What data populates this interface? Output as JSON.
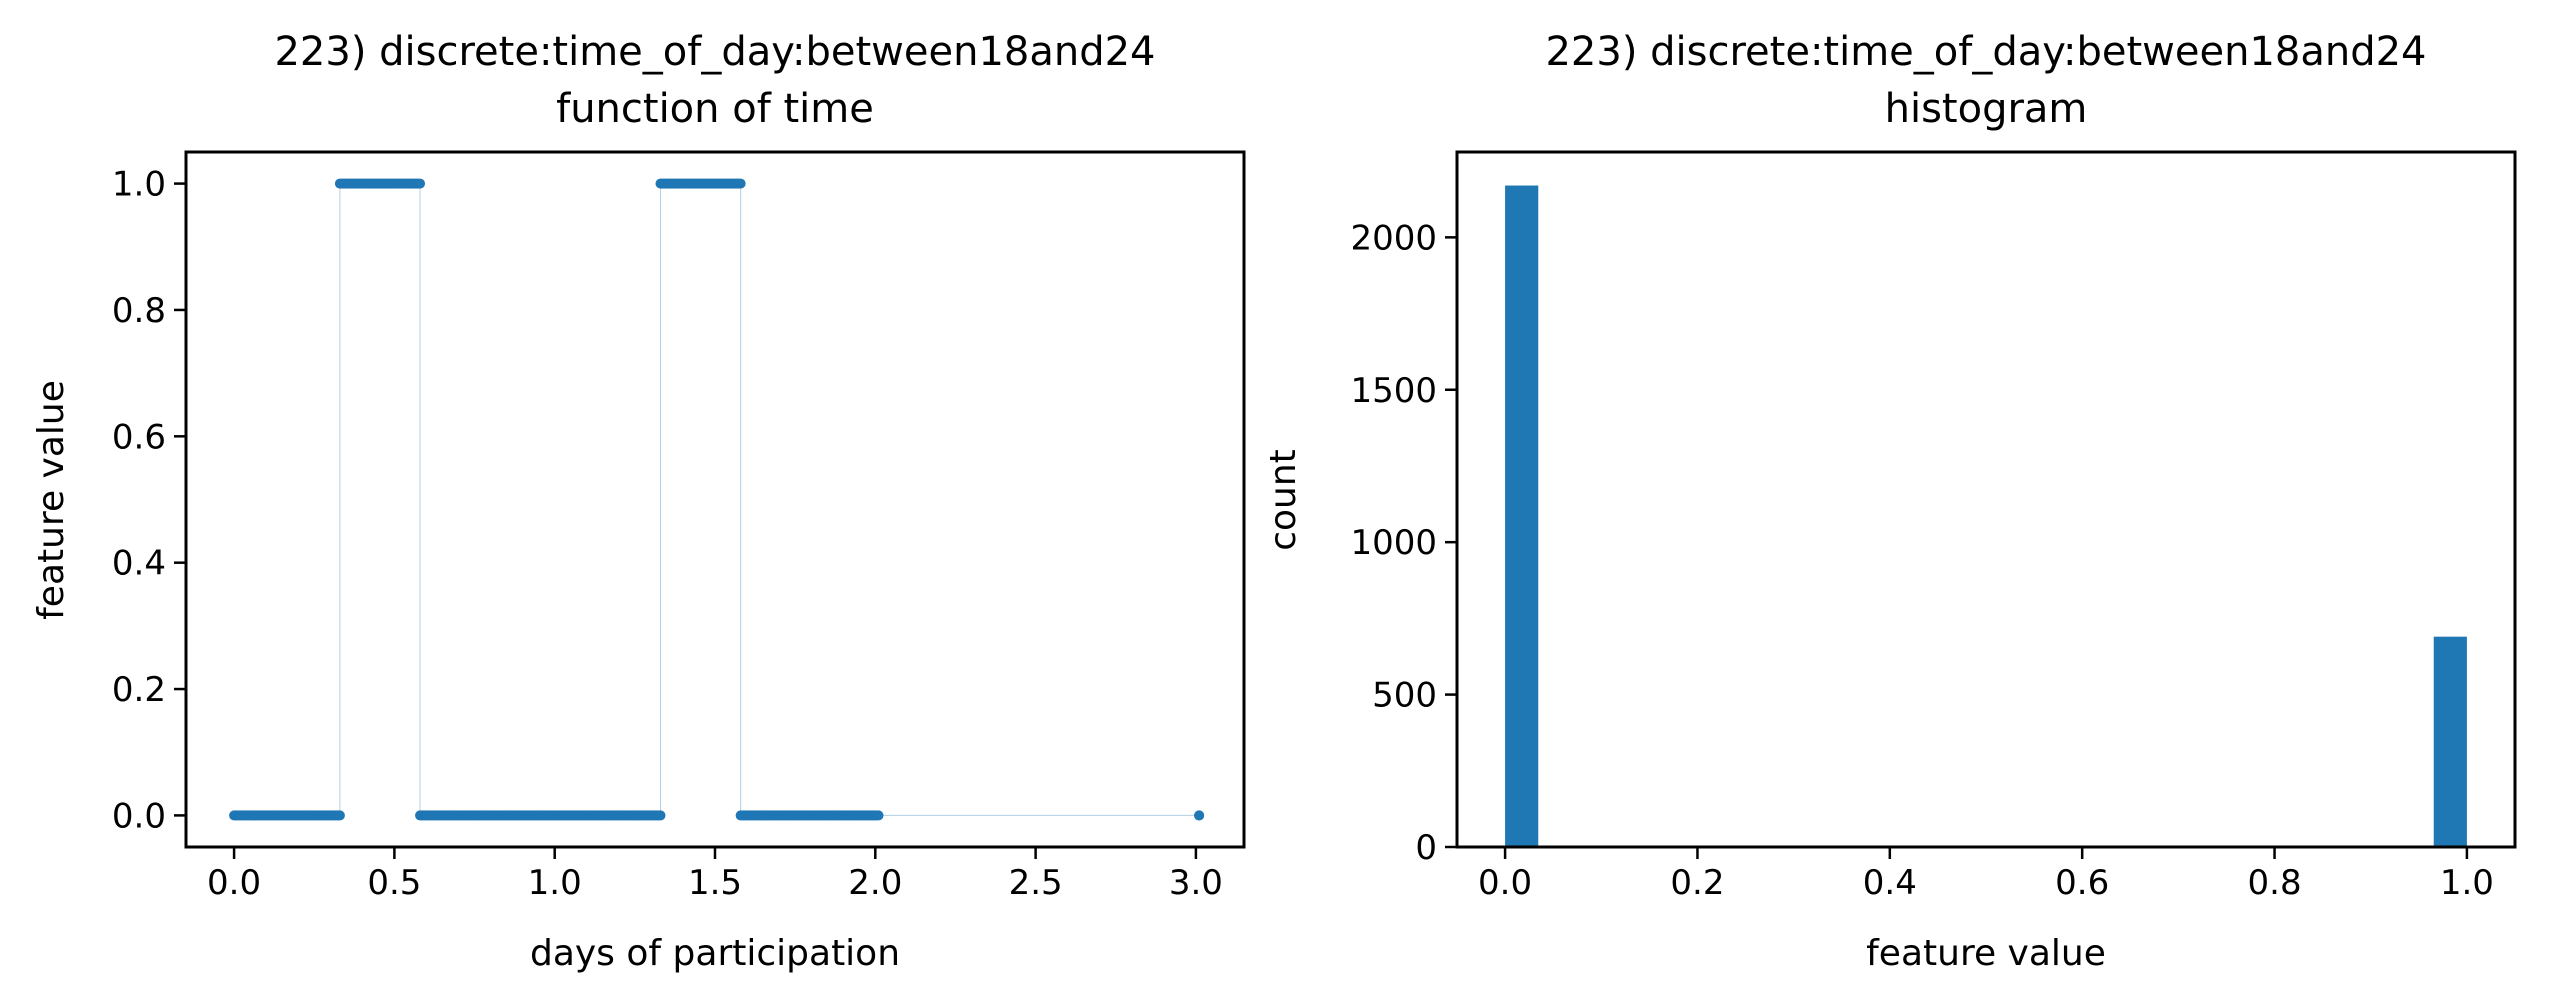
{
  "colors": {
    "series": "#1f77b4",
    "axes": "#000000",
    "background": "#ffffff"
  },
  "chart_data": [
    {
      "type": "scatter",
      "title_line1": "223) discrete:time_of_day:between18and24",
      "title_line2": "function of time",
      "xlabel": "days of participation",
      "ylabel": "feature value",
      "xlim": [
        -0.15,
        3.15
      ],
      "ylim": [
        -0.05,
        1.05
      ],
      "xticks": [
        "0.0",
        "0.5",
        "1.0",
        "1.5",
        "2.0",
        "2.5",
        "3.0"
      ],
      "xtick_values": [
        0,
        0.5,
        1.0,
        1.5,
        2.0,
        2.5,
        3.0
      ],
      "yticks": [
        "0.0",
        "0.2",
        "0.4",
        "0.6",
        "0.8",
        "1.0"
      ],
      "ytick_values": [
        0,
        0.2,
        0.4,
        0.6,
        0.8,
        1.0
      ],
      "segments": [
        {
          "x_start": 0.0,
          "x_end": 0.33,
          "value": 0
        },
        {
          "x_start": 0.33,
          "x_end": 0.58,
          "value": 1
        },
        {
          "x_start": 0.58,
          "x_end": 1.33,
          "value": 0
        },
        {
          "x_start": 1.33,
          "x_end": 1.58,
          "value": 1
        },
        {
          "x_start": 1.58,
          "x_end": 2.01,
          "value": 0
        },
        {
          "x_start": 3.01,
          "x_end": 3.01,
          "value": 0
        }
      ],
      "grid": false
    },
    {
      "type": "bar",
      "title_line1": "223) discrete:time_of_day:between18and24",
      "title_line2": "histogram",
      "xlabel": "feature value",
      "ylabel": "count",
      "xlim": [
        -0.05,
        1.05
      ],
      "ylim": [
        0,
        2280
      ],
      "xticks": [
        "0.0",
        "0.2",
        "0.4",
        "0.6",
        "0.8",
        "1.0"
      ],
      "xtick_values": [
        0,
        0.2,
        0.4,
        0.6,
        0.8,
        1.0
      ],
      "yticks": [
        "0",
        "500",
        "1000",
        "1500",
        "2000"
      ],
      "ytick_values": [
        0,
        500,
        1000,
        1500,
        2000
      ],
      "bins": [
        {
          "x_start": 0.0,
          "x_end": 0.0345,
          "value": 2170
        },
        {
          "x_start": 0.9655,
          "x_end": 1.0,
          "value": 690
        }
      ],
      "grid": false
    }
  ]
}
